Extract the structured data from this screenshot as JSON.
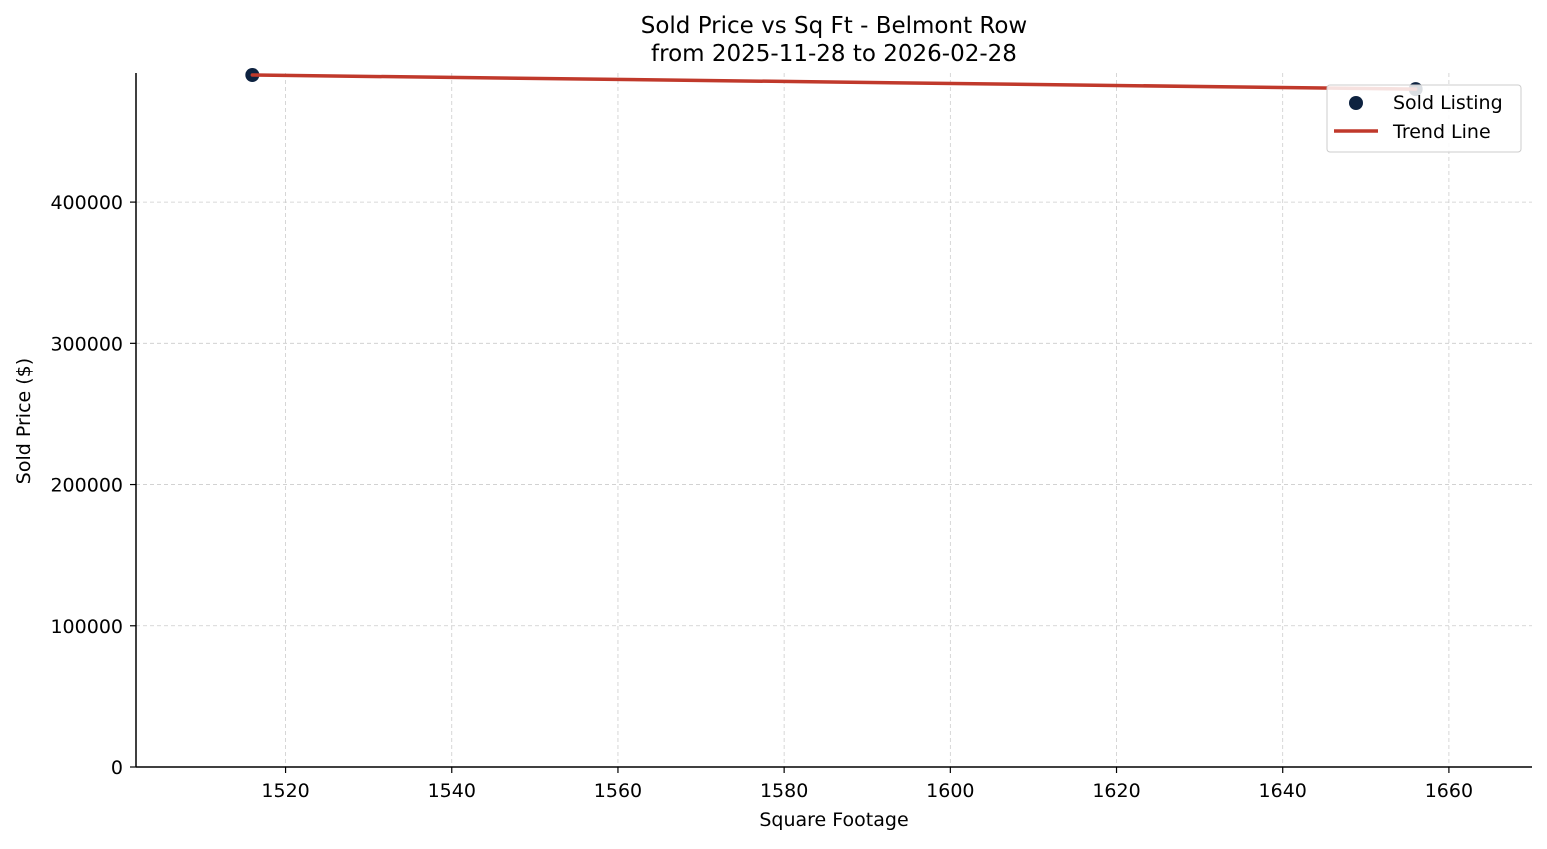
{
  "chart_data": {
    "type": "scatter",
    "title": "Sold Price vs Sq Ft - Belmont Row",
    "subtitle": "from 2025-11-28 to 2026-02-28",
    "xlabel": "Square Footage",
    "ylabel": "Sold Price ($)",
    "xlim": [
      1502,
      1670
    ],
    "ylim": [
      0,
      490000
    ],
    "xticks": [
      1520,
      1540,
      1560,
      1580,
      1600,
      1620,
      1640,
      1660
    ],
    "yticks": [
      0,
      100000,
      200000,
      300000,
      400000
    ],
    "grid": true,
    "legend_position": "top-right",
    "series": [
      {
        "name": "Sold Listing",
        "kind": "scatter",
        "color": "#0d2240",
        "points": [
          {
            "x": 1516,
            "y": 490000
          },
          {
            "x": 1656,
            "y": 480000
          }
        ]
      },
      {
        "name": "Trend Line",
        "kind": "line",
        "color": "#c0392b",
        "points": [
          {
            "x": 1516,
            "y": 490000
          },
          {
            "x": 1656,
            "y": 480000
          }
        ]
      }
    ]
  }
}
